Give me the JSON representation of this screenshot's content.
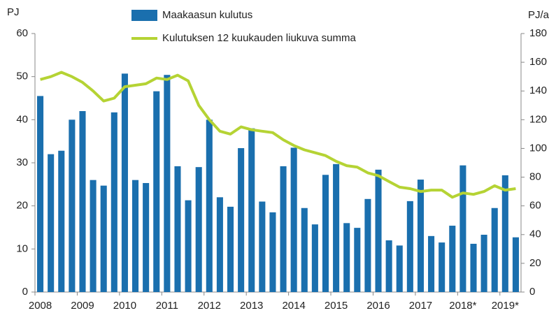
{
  "chart_data": {
    "type": "bar_line",
    "y_label": "PJ",
    "y2_label": "PJ/a",
    "categories": [
      "2008",
      null,
      null,
      null,
      "2009",
      null,
      null,
      null,
      "2010",
      null,
      null,
      null,
      "2011",
      null,
      null,
      null,
      "2012",
      null,
      null,
      null,
      "2013",
      null,
      null,
      null,
      "2014",
      null,
      null,
      null,
      "2015",
      null,
      null,
      null,
      "2016",
      null,
      null,
      null,
      "2017",
      null,
      null,
      null,
      "2018*",
      null,
      null,
      null,
      "2019*",
      null
    ],
    "series": [
      {
        "name": "Maakaasun kulutus",
        "color": "#1a6fae",
        "kind": "bar",
        "values": [
          45.5,
          32,
          32.8,
          40,
          42,
          26,
          24.7,
          41.7,
          50.7,
          26,
          25.3,
          46.6,
          50.4,
          29.2,
          21.3,
          29,
          40,
          22,
          19.8,
          33.4,
          38,
          21,
          18.5,
          29.2,
          33.5,
          19.5,
          15.7,
          27.2,
          29.7,
          16,
          14.9,
          21.6,
          28.4,
          12,
          10.8,
          21.1,
          26.1,
          13,
          11.5,
          15.4,
          29.4,
          11.2,
          13.3,
          19.5,
          27.1,
          12.7
        ]
      },
      {
        "name": "Kulutuksen 12 kuukauden liukuva summa",
        "color": "#b5d334",
        "kind": "line",
        "axis": "y2",
        "values": [
          148,
          150,
          153,
          150,
          146,
          140,
          133,
          135,
          143,
          144,
          145,
          149,
          148,
          151,
          147,
          130,
          120,
          112,
          110,
          115,
          113,
          112,
          111,
          106,
          102,
          99,
          97,
          95,
          91,
          88,
          87,
          83,
          81,
          77,
          73,
          72,
          70,
          71,
          71,
          66,
          69,
          68,
          70,
          74,
          71,
          72
        ]
      }
    ],
    "ylim": [
      0,
      60
    ],
    "yticks": [
      0,
      10,
      20,
      30,
      40,
      50,
      60
    ],
    "y2lim": [
      0,
      180
    ],
    "y2ticks": [
      0,
      20,
      40,
      60,
      80,
      100,
      120,
      140,
      160,
      180
    ],
    "grid": false
  }
}
